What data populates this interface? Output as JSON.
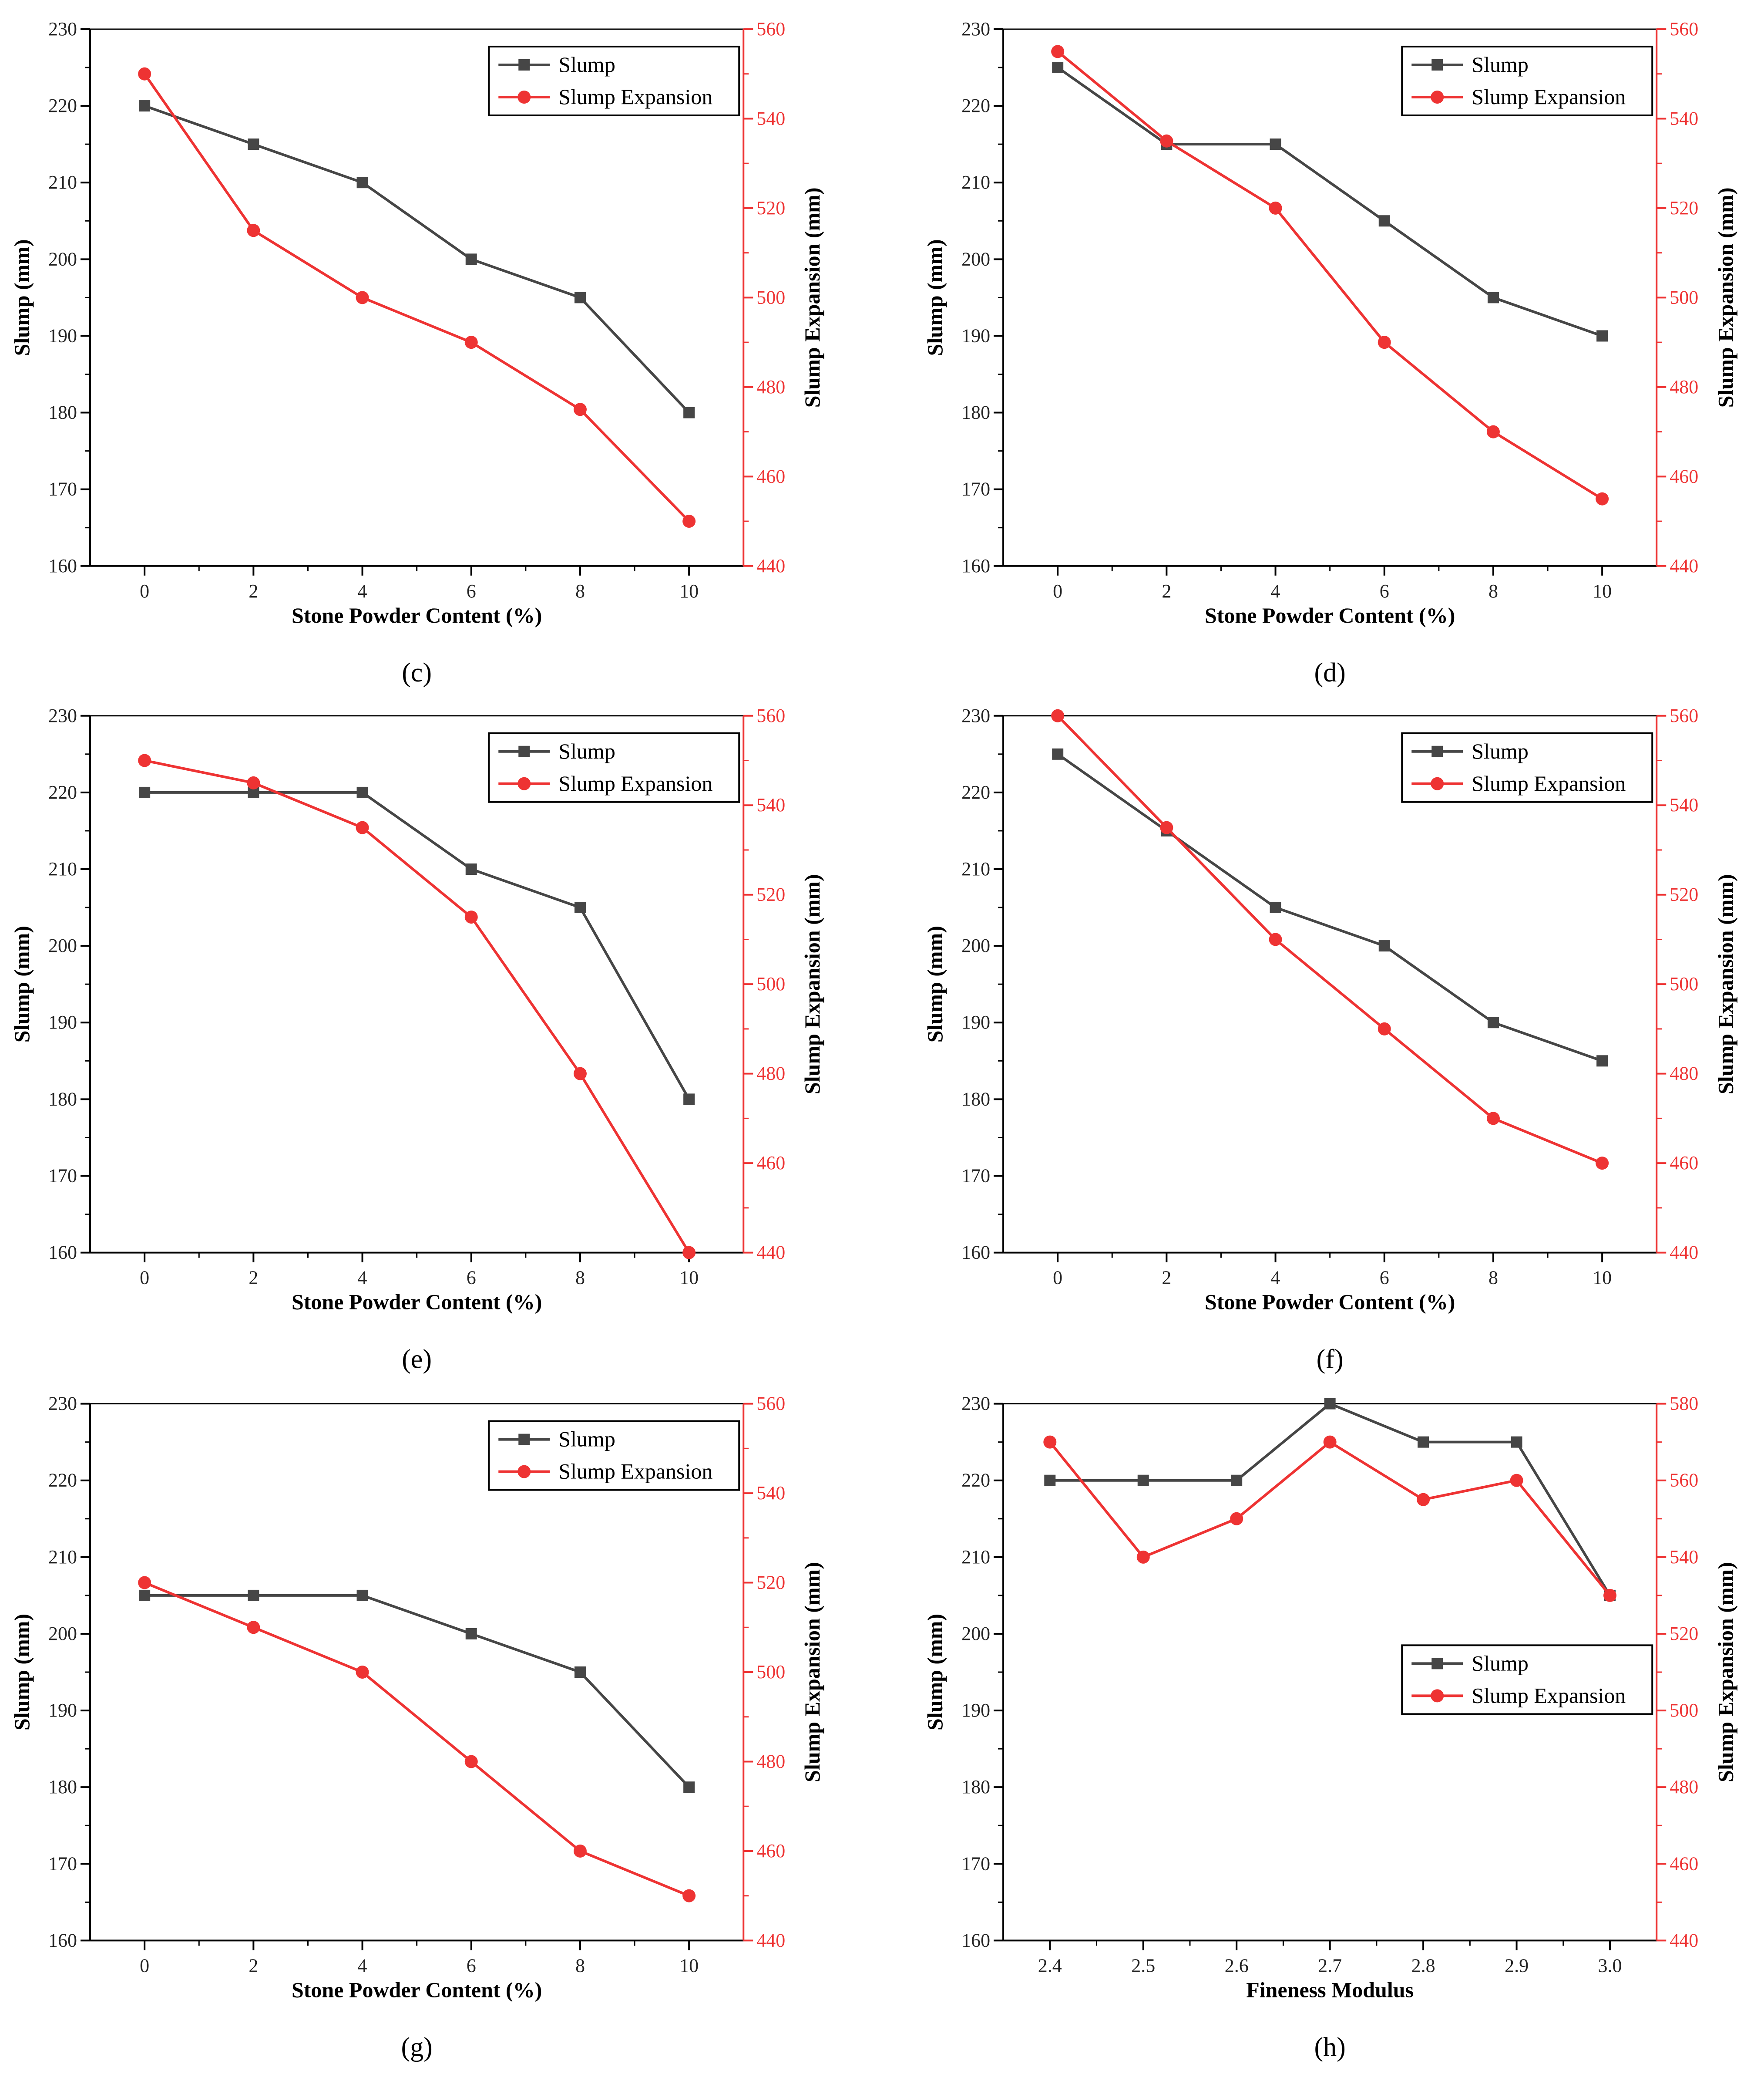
{
  "colors": {
    "slump": "#464646",
    "expansion": "#ee3333",
    "axis": "#000000"
  },
  "chart_data": [
    {
      "type": "line",
      "panel_label": "(c)",
      "x": [
        0,
        2,
        4,
        6,
        8,
        10
      ],
      "xlim": [
        -1,
        11
      ],
      "xticks": [
        0,
        2,
        4,
        6,
        8,
        10
      ],
      "xlabel": "Stone Powder Content (%)",
      "ylabel": "Slump (mm)",
      "ylim": [
        160,
        230
      ],
      "yticks": [
        160,
        170,
        180,
        190,
        200,
        210,
        220,
        230
      ],
      "y2label": "Slump Expansion (mm)",
      "y2lim": [
        440,
        560
      ],
      "y2ticks": [
        440,
        460,
        480,
        500,
        520,
        540,
        560
      ],
      "legend_position": "top-right",
      "series": [
        {
          "name": "Slump",
          "axis": "left",
          "marker": "square",
          "values": [
            220,
            215,
            210,
            200,
            195,
            180
          ]
        },
        {
          "name": "Slump Expansion",
          "axis": "right",
          "marker": "circle",
          "values": [
            550,
            515,
            500,
            490,
            475,
            450
          ]
        }
      ]
    },
    {
      "type": "line",
      "panel_label": "(d)",
      "x": [
        0,
        2,
        4,
        6,
        8,
        10
      ],
      "xlim": [
        -1,
        11
      ],
      "xticks": [
        0,
        2,
        4,
        6,
        8,
        10
      ],
      "xlabel": "Stone Powder Content (%)",
      "ylabel": "Slump (mm)",
      "ylim": [
        160,
        230
      ],
      "yticks": [
        160,
        170,
        180,
        190,
        200,
        210,
        220,
        230
      ],
      "y2label": "Slump Expansion (mm)",
      "y2lim": [
        440,
        560
      ],
      "y2ticks": [
        440,
        460,
        480,
        500,
        520,
        540,
        560
      ],
      "legend_position": "top-right",
      "series": [
        {
          "name": "Slump",
          "axis": "left",
          "marker": "square",
          "values": [
            225,
            215,
            215,
            205,
            195,
            190
          ]
        },
        {
          "name": "Slump Expansion",
          "axis": "right",
          "marker": "circle",
          "values": [
            555,
            535,
            520,
            490,
            470,
            455
          ]
        }
      ]
    },
    {
      "type": "line",
      "panel_label": "(e)",
      "x": [
        0,
        2,
        4,
        6,
        8,
        10
      ],
      "xlim": [
        -1,
        11
      ],
      "xticks": [
        0,
        2,
        4,
        6,
        8,
        10
      ],
      "xlabel": "Stone Powder Content (%)",
      "ylabel": "Slump (mm)",
      "ylim": [
        160,
        230
      ],
      "yticks": [
        160,
        170,
        180,
        190,
        200,
        210,
        220,
        230
      ],
      "y2label": "Slump Expansion (mm)",
      "y2lim": [
        440,
        560
      ],
      "y2ticks": [
        440,
        460,
        480,
        500,
        520,
        540,
        560
      ],
      "legend_position": "top-right",
      "series": [
        {
          "name": "Slump",
          "axis": "left",
          "marker": "square",
          "values": [
            220,
            220,
            220,
            210,
            205,
            180
          ]
        },
        {
          "name": "Slump Expansion",
          "axis": "right",
          "marker": "circle",
          "values": [
            550,
            545,
            535,
            515,
            480,
            440
          ]
        }
      ]
    },
    {
      "type": "line",
      "panel_label": "(f)",
      "x": [
        0,
        2,
        4,
        6,
        8,
        10
      ],
      "xlim": [
        -1,
        11
      ],
      "xticks": [
        0,
        2,
        4,
        6,
        8,
        10
      ],
      "xlabel": "Stone Powder Content (%)",
      "ylabel": "Slump (mm)",
      "ylim": [
        160,
        230
      ],
      "yticks": [
        160,
        170,
        180,
        190,
        200,
        210,
        220,
        230
      ],
      "y2label": "Slump Expansion (mm)",
      "y2lim": [
        440,
        560
      ],
      "y2ticks": [
        440,
        460,
        480,
        500,
        520,
        540,
        560
      ],
      "legend_position": "top-right",
      "series": [
        {
          "name": "Slump",
          "axis": "left",
          "marker": "square",
          "values": [
            225,
            215,
            205,
            200,
            190,
            185
          ]
        },
        {
          "name": "Slump Expansion",
          "axis": "right",
          "marker": "circle",
          "values": [
            560,
            535,
            510,
            490,
            470,
            460
          ]
        }
      ]
    },
    {
      "type": "line",
      "panel_label": "(g)",
      "x": [
        0,
        2,
        4,
        6,
        8,
        10
      ],
      "xlim": [
        -1,
        11
      ],
      "xticks": [
        0,
        2,
        4,
        6,
        8,
        10
      ],
      "xlabel": "Stone Powder Content (%)",
      "ylabel": "Slump (mm)",
      "ylim": [
        160,
        230
      ],
      "yticks": [
        160,
        170,
        180,
        190,
        200,
        210,
        220,
        230
      ],
      "y2label": "Slump Expansion (mm)",
      "y2lim": [
        440,
        560
      ],
      "y2ticks": [
        440,
        460,
        480,
        500,
        520,
        540,
        560
      ],
      "legend_position": "top-right",
      "series": [
        {
          "name": "Slump",
          "axis": "left",
          "marker": "square",
          "values": [
            205,
            205,
            205,
            200,
            195,
            180
          ]
        },
        {
          "name": "Slump Expansion",
          "axis": "right",
          "marker": "circle",
          "values": [
            520,
            510,
            500,
            480,
            460,
            450
          ]
        }
      ]
    },
    {
      "type": "line",
      "panel_label": "(h)",
      "x": [
        2.4,
        2.5,
        2.6,
        2.7,
        2.8,
        2.9,
        3.0
      ],
      "xlim": [
        2.35,
        3.05
      ],
      "xticks": [
        "2.4",
        "2.5",
        "2.6",
        "2.7",
        "2.8",
        "2.9",
        "3.0"
      ],
      "xlabel": "Fineness Modulus",
      "ylabel": "Slump (mm)",
      "ylim": [
        160,
        230
      ],
      "yticks": [
        160,
        170,
        180,
        190,
        200,
        210,
        220,
        230
      ],
      "y2label": "Slump Expansion (mm)",
      "y2lim": [
        440,
        580
      ],
      "y2ticks": [
        440,
        460,
        480,
        500,
        520,
        540,
        560,
        580
      ],
      "legend_position": "middle-right",
      "series": [
        {
          "name": "Slump",
          "axis": "left",
          "marker": "square",
          "values": [
            220,
            220,
            220,
            230,
            225,
            225,
            205
          ]
        },
        {
          "name": "Slump Expansion",
          "axis": "right",
          "marker": "circle",
          "values": [
            570,
            540,
            550,
            570,
            555,
            560,
            530
          ]
        }
      ]
    }
  ]
}
